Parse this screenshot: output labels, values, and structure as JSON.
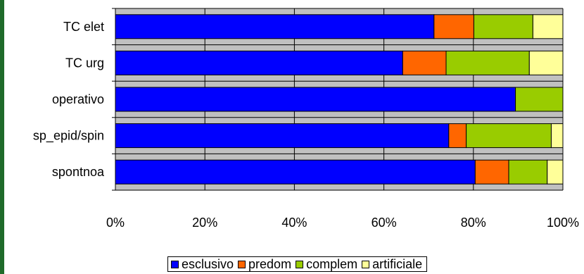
{
  "chart_data": {
    "type": "bar",
    "orientation": "horizontal",
    "stacked": "percent",
    "title": "",
    "xlabel": "",
    "ylabel": "",
    "xlim": [
      0,
      100
    ],
    "x_ticks": [
      "0%",
      "20%",
      "40%",
      "60%",
      "80%",
      "100%"
    ],
    "grid": true,
    "plot_background": "#c0c0c0",
    "legend_position": "bottom",
    "categories": [
      "TC elet",
      "TC urg",
      "operativo",
      "sp_epid/spin",
      "spontnoa"
    ],
    "series": [
      {
        "name": "esclusivo",
        "color": "#0000ff",
        "values": [
          71.2,
          64.2,
          89.4,
          74.5,
          80.4
        ]
      },
      {
        "name": "predom",
        "color": "#ff6600",
        "values": [
          8.9,
          9.7,
          0,
          3.9,
          7.5
        ]
      },
      {
        "name": "complem",
        "color": "#99cc00",
        "values": [
          13.2,
          18.6,
          10.6,
          19.0,
          8.6
        ]
      },
      {
        "name": "artificiale",
        "color": "#ffff99",
        "values": [
          6.7,
          7.5,
          0,
          2.6,
          3.5
        ]
      }
    ]
  }
}
